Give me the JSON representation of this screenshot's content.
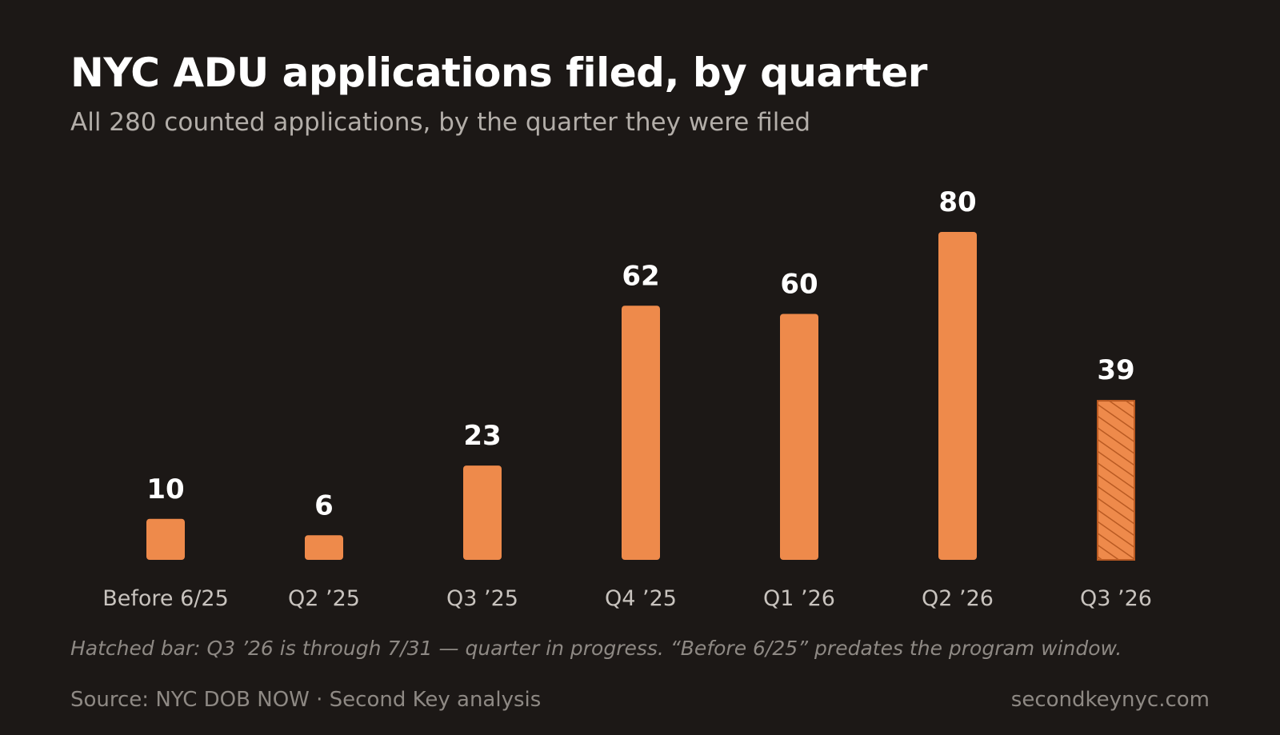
{
  "title": "NYC ADU applications filed, by quarter",
  "subtitle": "All 280 counted applications, by the quarter they were filed",
  "note": "Hatched bar: Q3 ’26 is through 7/31 — quarter in progress. “Before 6/25” predates the program window.",
  "source": "Source: NYC DOB NOW · Second Key analysis",
  "site": "secondkeynyc.com",
  "colors": {
    "background": "#1c1816",
    "bar": "#ee8a4b",
    "hatch": "#b95a22",
    "title": "#ffffff",
    "subtitle": "#b3aea9",
    "label": "#ffffff",
    "tick": "#c8c3be",
    "muted": "#8e8984"
  },
  "chart_data": {
    "type": "bar",
    "categories": [
      "Before 6/25",
      "Q2 ’25",
      "Q3 ’25",
      "Q4 ’25",
      "Q1 ’26",
      "Q2 ’26",
      "Q3 ’26"
    ],
    "values": [
      10,
      6,
      23,
      62,
      60,
      80,
      39
    ],
    "hatched": [
      false,
      false,
      false,
      false,
      false,
      false,
      true
    ],
    "ylim": [
      0,
      80
    ],
    "grid": false,
    "legend": "none",
    "title": "NYC ADU applications filed, by quarter",
    "subtitle": "All 280 counted applications, by the quarter they were filed"
  }
}
